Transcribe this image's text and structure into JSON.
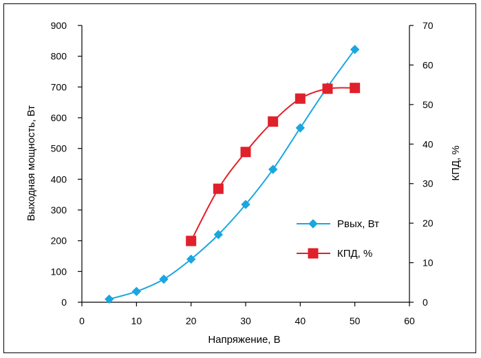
{
  "chart_data": {
    "type": "line",
    "xlabel": "Напряжение, В",
    "ylabel_left": "Выходная мощность, Вт",
    "ylabel_right": "КПД, %",
    "xlim": [
      0,
      60
    ],
    "ylim_left": [
      0,
      900
    ],
    "ylim_right": [
      0,
      70
    ],
    "x_ticks": [
      "0",
      "10",
      "20",
      "30",
      "40",
      "50",
      "60"
    ],
    "y_left_ticks": [
      "0",
      "100",
      "200",
      "300",
      "400",
      "500",
      "600",
      "700",
      "800",
      "900"
    ],
    "y_right_ticks": [
      "0",
      "10",
      "20",
      "30",
      "40",
      "50",
      "60",
      "70"
    ],
    "grid": false,
    "legend_position": "center-right",
    "series": [
      {
        "name": "Рвых, Вт",
        "axis": "left",
        "color": "#1AA6E0",
        "marker": "diamond",
        "x": [
          5,
          10,
          15,
          20,
          25,
          30,
          35,
          40,
          45,
          50
        ],
        "y": [
          10,
          35,
          75,
          140,
          220,
          318,
          432,
          567,
          700,
          822
        ]
      },
      {
        "name": "КПД, %",
        "axis": "right",
        "color": "#E0202A",
        "marker": "square",
        "x": [
          20,
          25,
          30,
          35,
          40,
          45,
          50
        ],
        "y": [
          15.5,
          28.7,
          38.0,
          45.7,
          51.5,
          54.0,
          54.2
        ]
      }
    ]
  }
}
